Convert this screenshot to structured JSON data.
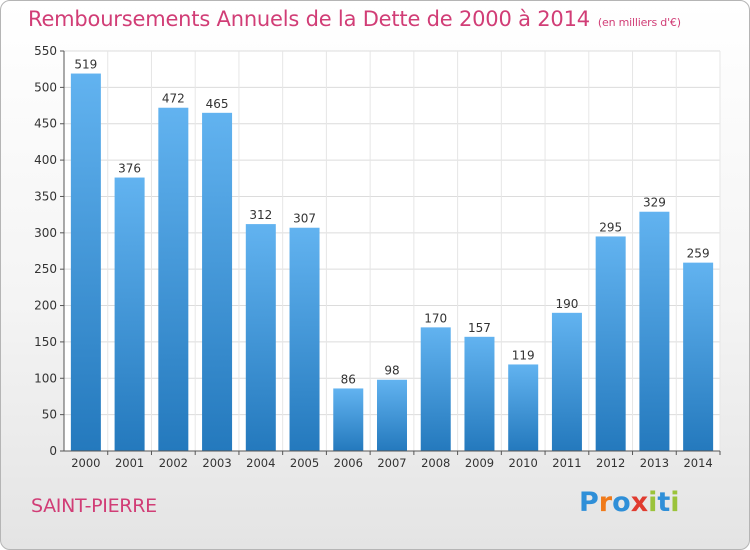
{
  "header": {
    "title": "Remboursements Annuels de la Dette de 2000 à 2014",
    "unit": "(en milliers d'€)"
  },
  "footer": {
    "commune": "SAINT-PIERRE",
    "logo": "Proxiti"
  },
  "colors": {
    "accent": "#d13d76",
    "bar_top": "#62b3f0",
    "bar_bottom": "#2479bd"
  },
  "chart_data": {
    "type": "bar",
    "title": "Remboursements Annuels de la Dette de 2000 à 2014",
    "categories": [
      "2000",
      "2001",
      "2002",
      "2003",
      "2004",
      "2005",
      "2006",
      "2007",
      "2008",
      "2009",
      "2010",
      "2011",
      "2012",
      "2013",
      "2014"
    ],
    "values": [
      519,
      376,
      472,
      465,
      312,
      307,
      86,
      98,
      170,
      157,
      119,
      190,
      295,
      329,
      259
    ],
    "ylim": [
      0,
      550
    ],
    "yticks": [
      0,
      50,
      100,
      150,
      200,
      250,
      300,
      350,
      400,
      450,
      500,
      550
    ],
    "grid": true,
    "xlabel": "",
    "ylabel": ""
  }
}
